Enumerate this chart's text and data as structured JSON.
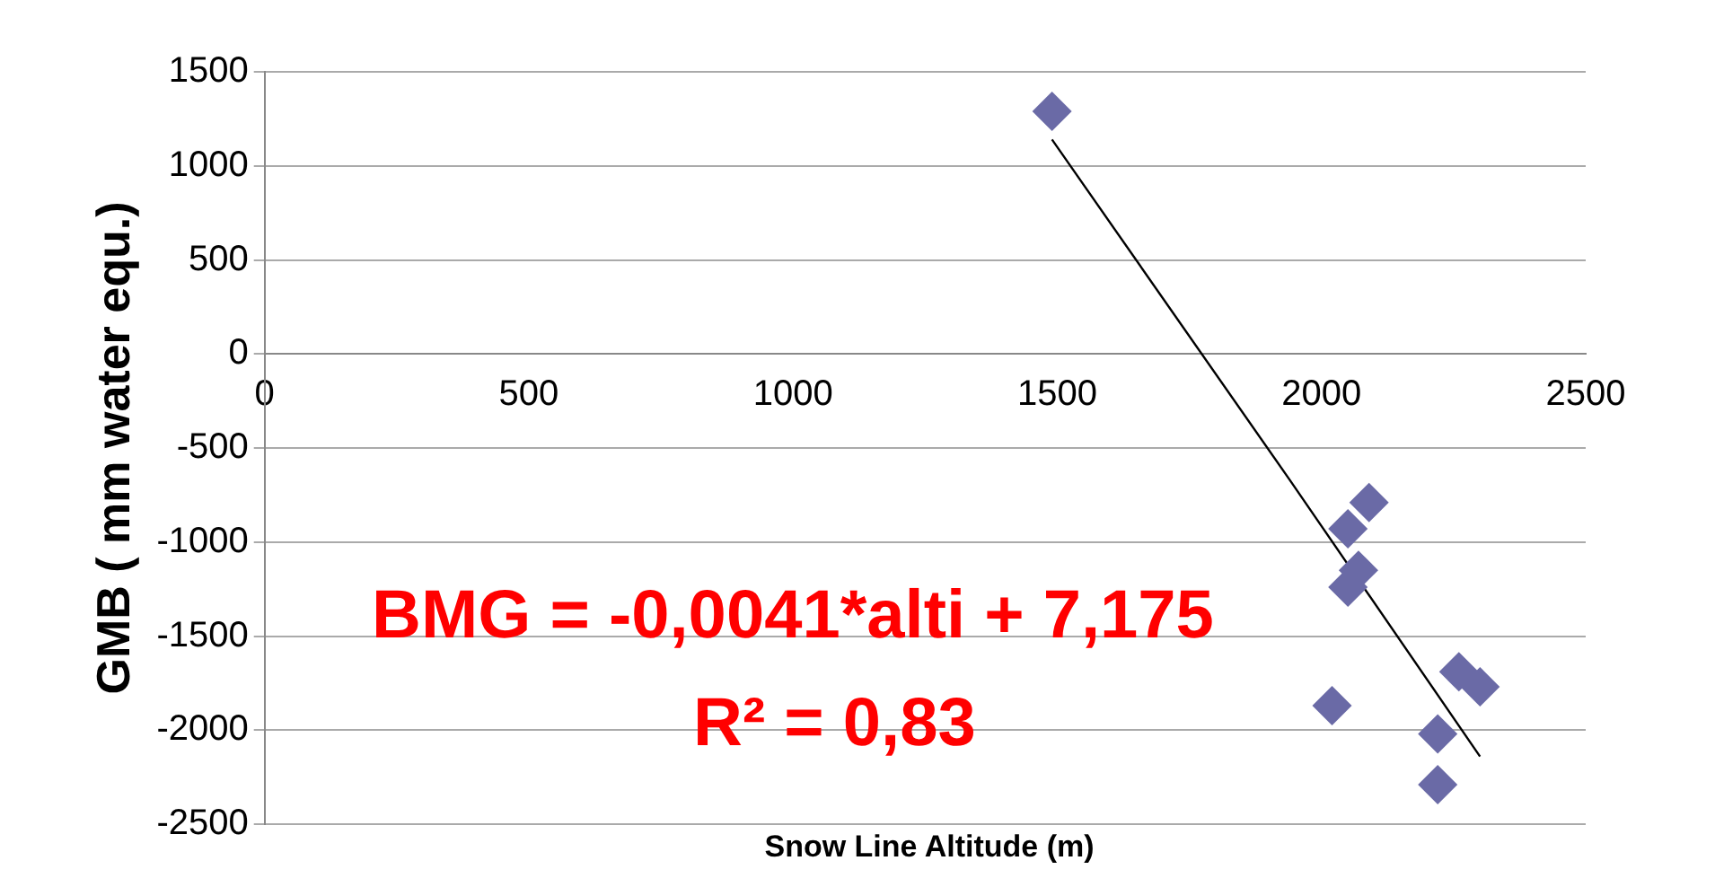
{
  "chart_data": {
    "type": "scatter",
    "xlabel": "Snow Line Altitude (m)",
    "ylabel": "GMB ( mm water equ.)",
    "xlim": [
      0,
      2500
    ],
    "xticks": [
      0,
      500,
      1000,
      1500,
      2000,
      2500
    ],
    "ylim": [
      -2500,
      1500
    ],
    "yticks": [
      -2500,
      -2000,
      -1500,
      -1000,
      -500,
      0,
      500,
      1000,
      1500
    ],
    "grid": "y",
    "legend": false,
    "marker": "diamond",
    "series": [
      {
        "color": "#6a6aa6",
        "x": [
          1490,
          2090,
          2050,
          2070,
          2050,
          2020,
          2260,
          2300,
          2220,
          2220
        ],
        "values": [
          1290,
          -790,
          -930,
          -1150,
          -1240,
          -1870,
          -1690,
          -1770,
          -2020,
          -2290
        ]
      },
      {
        "type": "line",
        "color": "#000000",
        "marker": "none",
        "x": [
          1490,
          1940,
          2300
        ],
        "values": [
          1140,
          -670,
          -2140
        ]
      }
    ],
    "annotations": [
      "BMG = -0,0041*alti + 7,175",
      "R² = 0,83"
    ]
  }
}
